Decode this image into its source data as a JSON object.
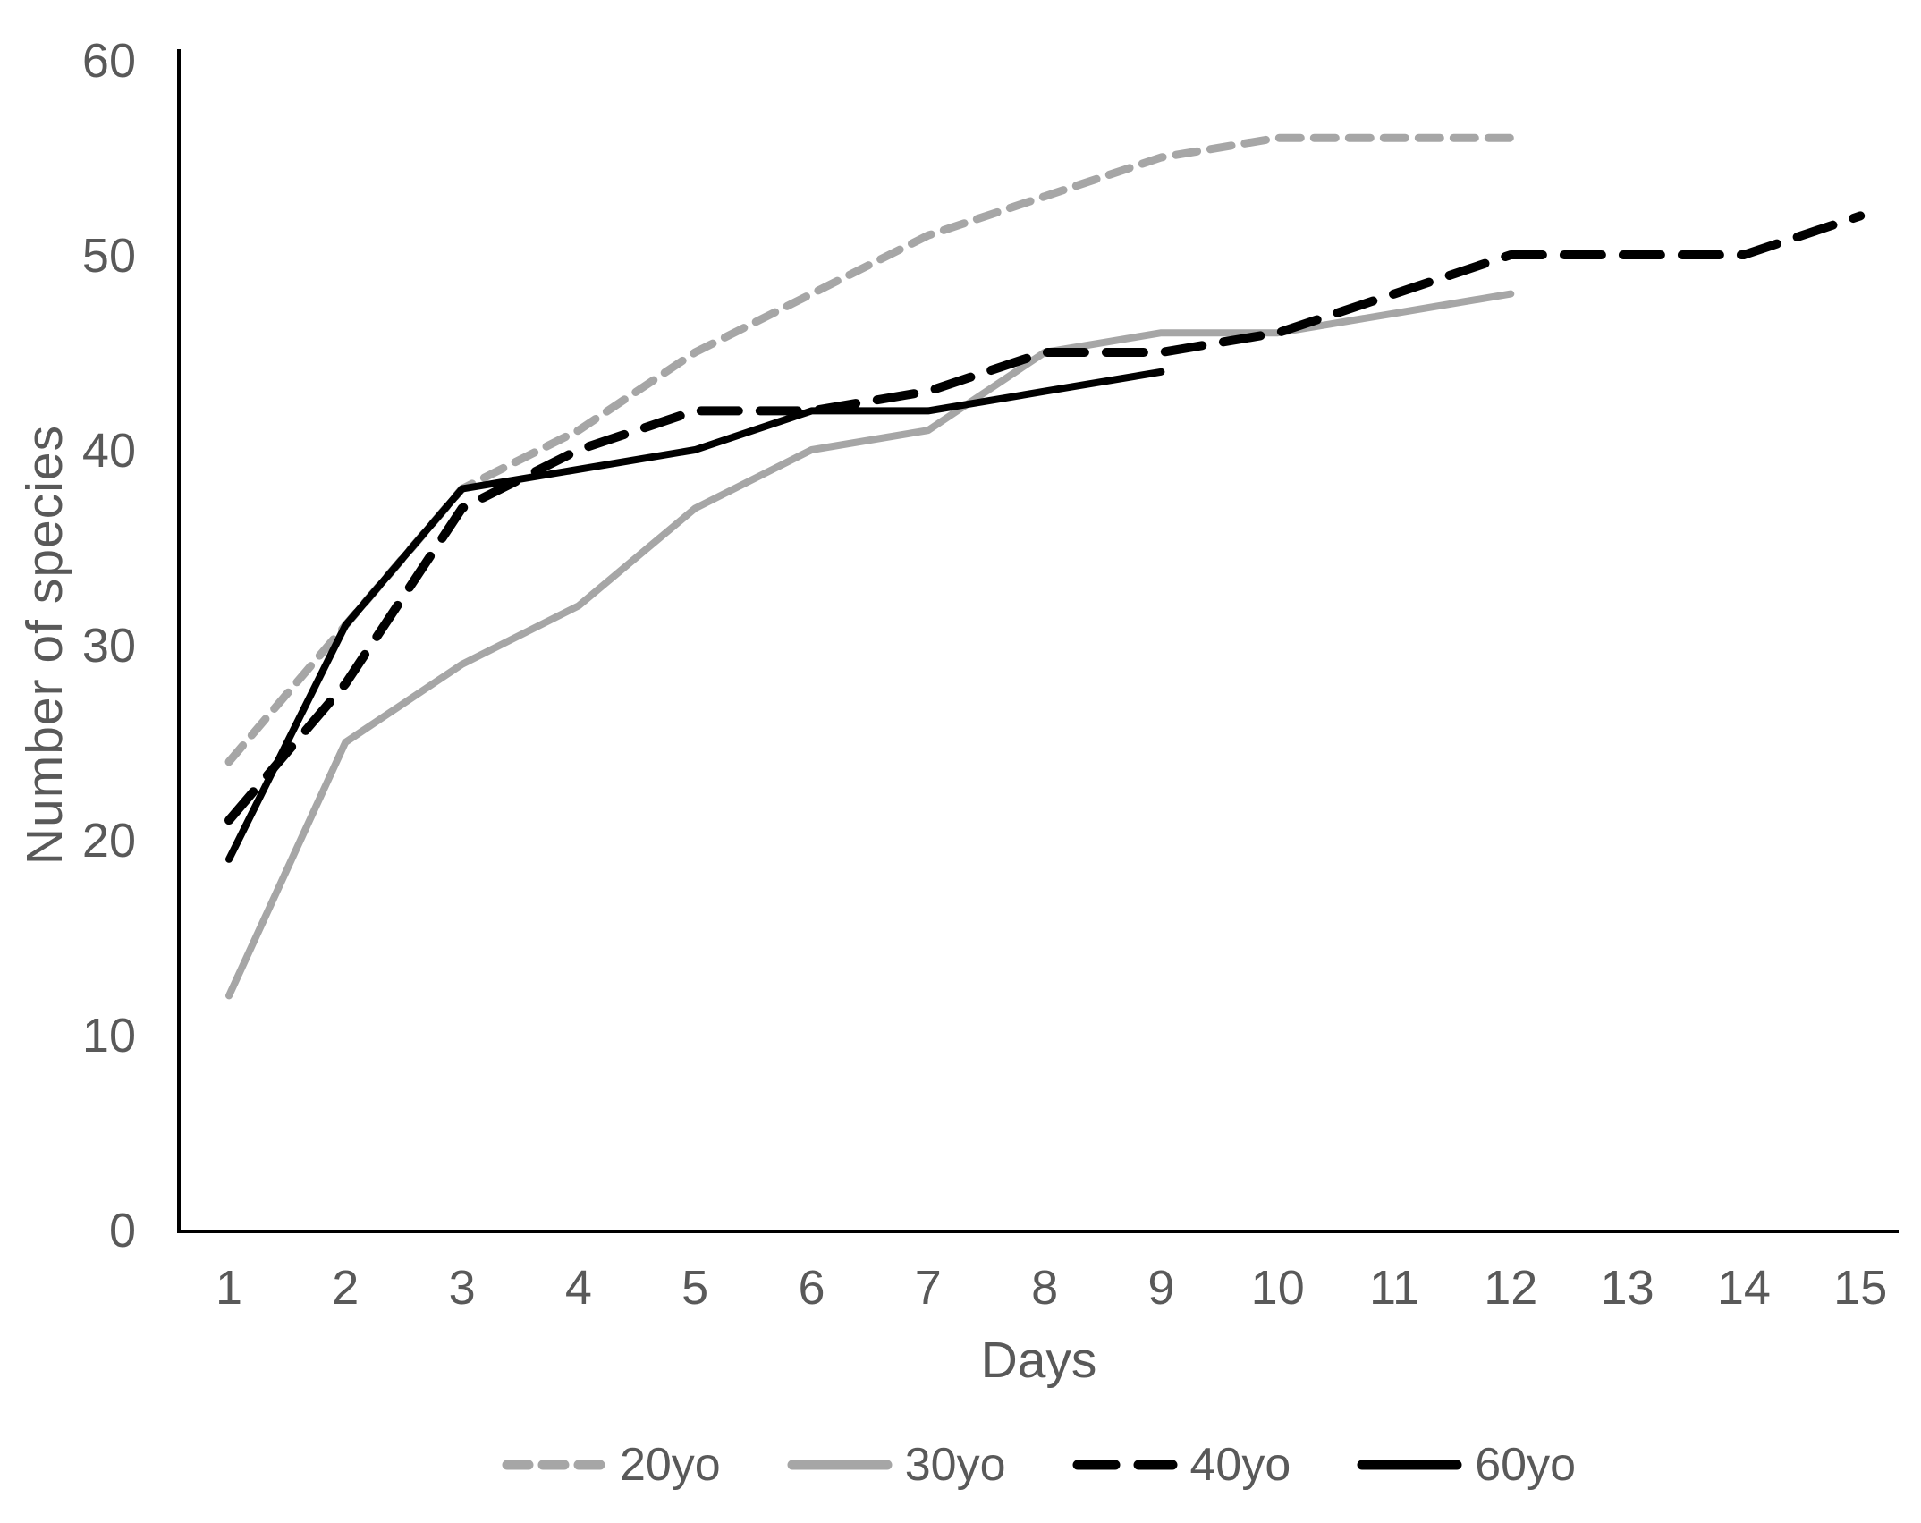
{
  "chart_data": {
    "type": "line",
    "title": "",
    "xlabel": "Days",
    "ylabel": "Number of species",
    "xlim": [
      1,
      15
    ],
    "ylim": [
      0,
      60
    ],
    "grid": false,
    "legend_position": "bottom",
    "axis_color": "#000000",
    "label_color": "#595959",
    "gray_color": "#a6a6a6",
    "black_color": "#000000",
    "x_ticks": [
      1,
      2,
      3,
      4,
      5,
      6,
      7,
      8,
      9,
      10,
      11,
      12,
      13,
      14,
      15
    ],
    "y_ticks": [
      0,
      10,
      20,
      30,
      40,
      50,
      60
    ],
    "series": [
      {
        "name": "20yo",
        "color": "#a6a6a6",
        "line_style": "dashed-short",
        "x": [
          1,
          2,
          3,
          4,
          5,
          6,
          7,
          8,
          9,
          10,
          11,
          12
        ],
        "values": [
          24,
          31,
          38,
          41,
          45,
          48,
          51,
          53,
          55,
          56,
          56,
          56
        ]
      },
      {
        "name": "30yo",
        "color": "#a6a6a6",
        "line_style": "solid",
        "x": [
          1,
          2,
          3,
          4,
          5,
          6,
          7,
          8,
          9,
          10,
          11,
          12
        ],
        "values": [
          12,
          25,
          29,
          32,
          37,
          40,
          41,
          45,
          46,
          46,
          47,
          48
        ]
      },
      {
        "name": "40yo",
        "color": "#000000",
        "line_style": "dashed-long",
        "x": [
          1,
          2,
          3,
          4,
          5,
          6,
          7,
          8,
          9,
          10,
          11,
          12,
          13,
          14,
          15
        ],
        "values": [
          21,
          28,
          37,
          40,
          42,
          42,
          43,
          45,
          45,
          46,
          48,
          50,
          50,
          50,
          52
        ]
      },
      {
        "name": "60yo",
        "color": "#000000",
        "line_style": "solid",
        "x": [
          1,
          2,
          3,
          4,
          5,
          6,
          7,
          8,
          9
        ],
        "values": [
          19,
          31,
          38,
          39,
          40,
          42,
          42,
          43,
          44
        ]
      }
    ]
  }
}
